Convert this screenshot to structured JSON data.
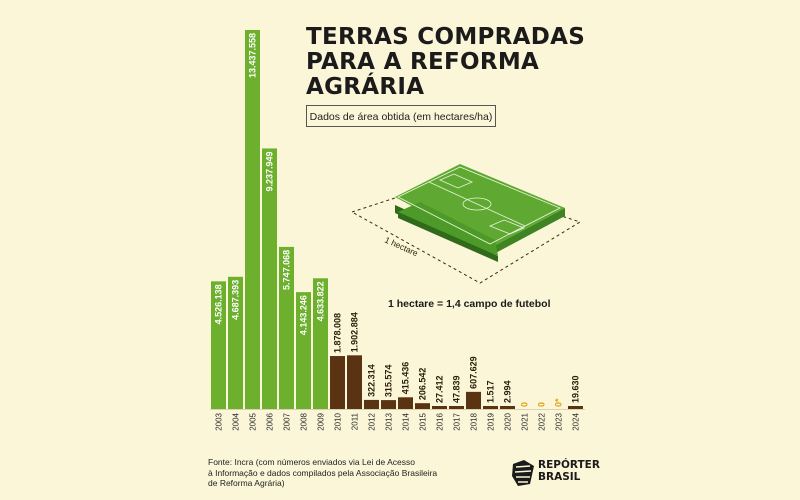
{
  "header": {
    "title_lines": [
      "TERRAS COMPRADAS",
      "PARA A REFORMA",
      "AGRÁRIA"
    ],
    "subtitle": "Dados de área obtida (em hectares/ha)"
  },
  "illustration": {
    "field_label": "1 hectare",
    "conversion_text": "1 hectare = 1,4 campo de futebol"
  },
  "footer": {
    "source_lines": [
      "Fonte: Incra (com números enviados via Lei de Acesso",
      "à Informação e dados compilados pela Associação Brasileira",
      "de Reforma Agrária)"
    ],
    "brand_lines": [
      "REPÓRTER",
      "BRASIL"
    ]
  },
  "colors": {
    "green": "#6cb02e",
    "brown": "#5a3412",
    "zero": "#e0a21a",
    "background": "#fbf6d8",
    "text": "#1b1b1b"
  },
  "chart_data": {
    "type": "bar",
    "title": "TERRAS COMPRADAS PARA A REFORMA AGRÁRIA",
    "subtitle": "Dados de área obtida (em hectares/ha)",
    "categories": [
      "2003",
      "2004",
      "2005",
      "2006",
      "2007",
      "2008",
      "2009",
      "2010",
      "2011",
      "2012",
      "2013",
      "2014",
      "2015",
      "2016",
      "2017",
      "2018",
      "2019",
      "2020",
      "2021",
      "2022",
      "2023",
      "2024"
    ],
    "values": [
      4526138,
      4687393,
      13437558,
      9237949,
      5747068,
      4143246,
      4633822,
      1878008,
      1902884,
      322314,
      315574,
      415436,
      206542,
      27412,
      47839,
      607629,
      1517,
      2994,
      0,
      0,
      0,
      19630
    ],
    "value_labels": [
      "4.526.138",
      "4.687.393",
      "13.437.558",
      "9.237.949",
      "5.747.068",
      "4.143.246",
      "4.633.822",
      "1.878.008",
      "1.902.884",
      "322.314",
      "315.574",
      "415.436",
      "206.542",
      "27.412",
      "47.839",
      "607.629",
      "1.517",
      "2.994",
      "0",
      "0",
      "0*",
      "19.630"
    ],
    "bar_colors": [
      "green",
      "green",
      "green",
      "green",
      "green",
      "green",
      "green",
      "brown",
      "brown",
      "brown",
      "brown",
      "brown",
      "brown",
      "brown",
      "brown",
      "brown",
      "brown",
      "brown",
      "zero",
      "zero",
      "zero",
      "brown"
    ],
    "ylim": [
      0,
      13437558
    ],
    "grid": false,
    "legend": "none"
  }
}
